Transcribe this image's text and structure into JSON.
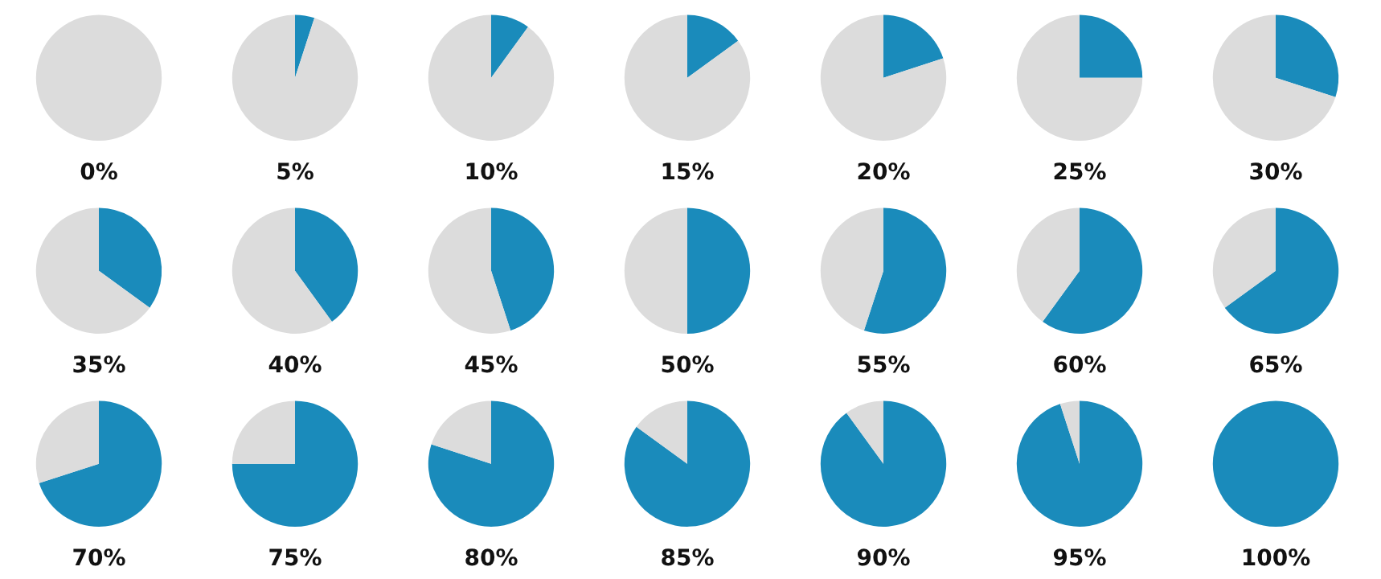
{
  "chart_data": [
    {
      "type": "pie",
      "title": "0%",
      "categories": [
        null,
        null
      ],
      "values": [
        0,
        100
      ],
      "colors": [
        "#1a8bbb",
        "#dcdcdc"
      ]
    },
    {
      "type": "pie",
      "title": "5%",
      "categories": [
        null,
        null
      ],
      "values": [
        5,
        95
      ],
      "colors": [
        "#1a8bbb",
        "#dcdcdc"
      ]
    },
    {
      "type": "pie",
      "title": "10%",
      "categories": [
        null,
        null
      ],
      "values": [
        10,
        90
      ],
      "colors": [
        "#1a8bbb",
        "#dcdcdc"
      ]
    },
    {
      "type": "pie",
      "title": "15%",
      "categories": [
        null,
        null
      ],
      "values": [
        15,
        85
      ],
      "colors": [
        "#1a8bbb",
        "#dcdcdc"
      ]
    },
    {
      "type": "pie",
      "title": "20%",
      "categories": [
        null,
        null
      ],
      "values": [
        20,
        80
      ],
      "colors": [
        "#1a8bbb",
        "#dcdcdc"
      ]
    },
    {
      "type": "pie",
      "title": "25%",
      "categories": [
        null,
        null
      ],
      "values": [
        25,
        75
      ],
      "colors": [
        "#1a8bbb",
        "#dcdcdc"
      ]
    },
    {
      "type": "pie",
      "title": "30%",
      "categories": [
        null,
        null
      ],
      "values": [
        30,
        70
      ],
      "colors": [
        "#1a8bbb",
        "#dcdcdc"
      ]
    },
    {
      "type": "pie",
      "title": "35%",
      "categories": [
        null,
        null
      ],
      "values": [
        35,
        65
      ],
      "colors": [
        "#1a8bbb",
        "#dcdcdc"
      ]
    },
    {
      "type": "pie",
      "title": "40%",
      "categories": [
        null,
        null
      ],
      "values": [
        40,
        60
      ],
      "colors": [
        "#1a8bbb",
        "#dcdcdc"
      ]
    },
    {
      "type": "pie",
      "title": "45%",
      "categories": [
        null,
        null
      ],
      "values": [
        45,
        55
      ],
      "colors": [
        "#1a8bbb",
        "#dcdcdc"
      ]
    },
    {
      "type": "pie",
      "title": "50%",
      "categories": [
        null,
        null
      ],
      "values": [
        50,
        50
      ],
      "colors": [
        "#1a8bbb",
        "#dcdcdc"
      ]
    },
    {
      "type": "pie",
      "title": "55%",
      "categories": [
        null,
        null
      ],
      "values": [
        55,
        45
      ],
      "colors": [
        "#1a8bbb",
        "#dcdcdc"
      ]
    },
    {
      "type": "pie",
      "title": "60%",
      "categories": [
        null,
        null
      ],
      "values": [
        60,
        40
      ],
      "colors": [
        "#1a8bbb",
        "#dcdcdc"
      ]
    },
    {
      "type": "pie",
      "title": "65%",
      "categories": [
        null,
        null
      ],
      "values": [
        65,
        35
      ],
      "colors": [
        "#1a8bbb",
        "#dcdcdc"
      ]
    },
    {
      "type": "pie",
      "title": "70%",
      "categories": [
        null,
        null
      ],
      "values": [
        70,
        30
      ],
      "colors": [
        "#1a8bbb",
        "#dcdcdc"
      ]
    },
    {
      "type": "pie",
      "title": "75%",
      "categories": [
        null,
        null
      ],
      "values": [
        75,
        25
      ],
      "colors": [
        "#1a8bbb",
        "#dcdcdc"
      ]
    },
    {
      "type": "pie",
      "title": "80%",
      "categories": [
        null,
        null
      ],
      "values": [
        80,
        20
      ],
      "colors": [
        "#1a8bbb",
        "#dcdcdc"
      ]
    },
    {
      "type": "pie",
      "title": "85%",
      "categories": [
        null,
        null
      ],
      "values": [
        85,
        15
      ],
      "colors": [
        "#1a8bbb",
        "#dcdcdc"
      ]
    },
    {
      "type": "pie",
      "title": "90%",
      "categories": [
        null,
        null
      ],
      "values": [
        90,
        10
      ],
      "colors": [
        "#1a8bbb",
        "#dcdcdc"
      ]
    },
    {
      "type": "pie",
      "title": "95%",
      "categories": [
        null,
        null
      ],
      "values": [
        95,
        5
      ],
      "colors": [
        "#1a8bbb",
        "#dcdcdc"
      ]
    },
    {
      "type": "pie",
      "title": "100%",
      "categories": [
        null,
        null
      ],
      "values": [
        100,
        0
      ],
      "colors": [
        "#1a8bbb",
        "#dcdcdc"
      ]
    }
  ]
}
